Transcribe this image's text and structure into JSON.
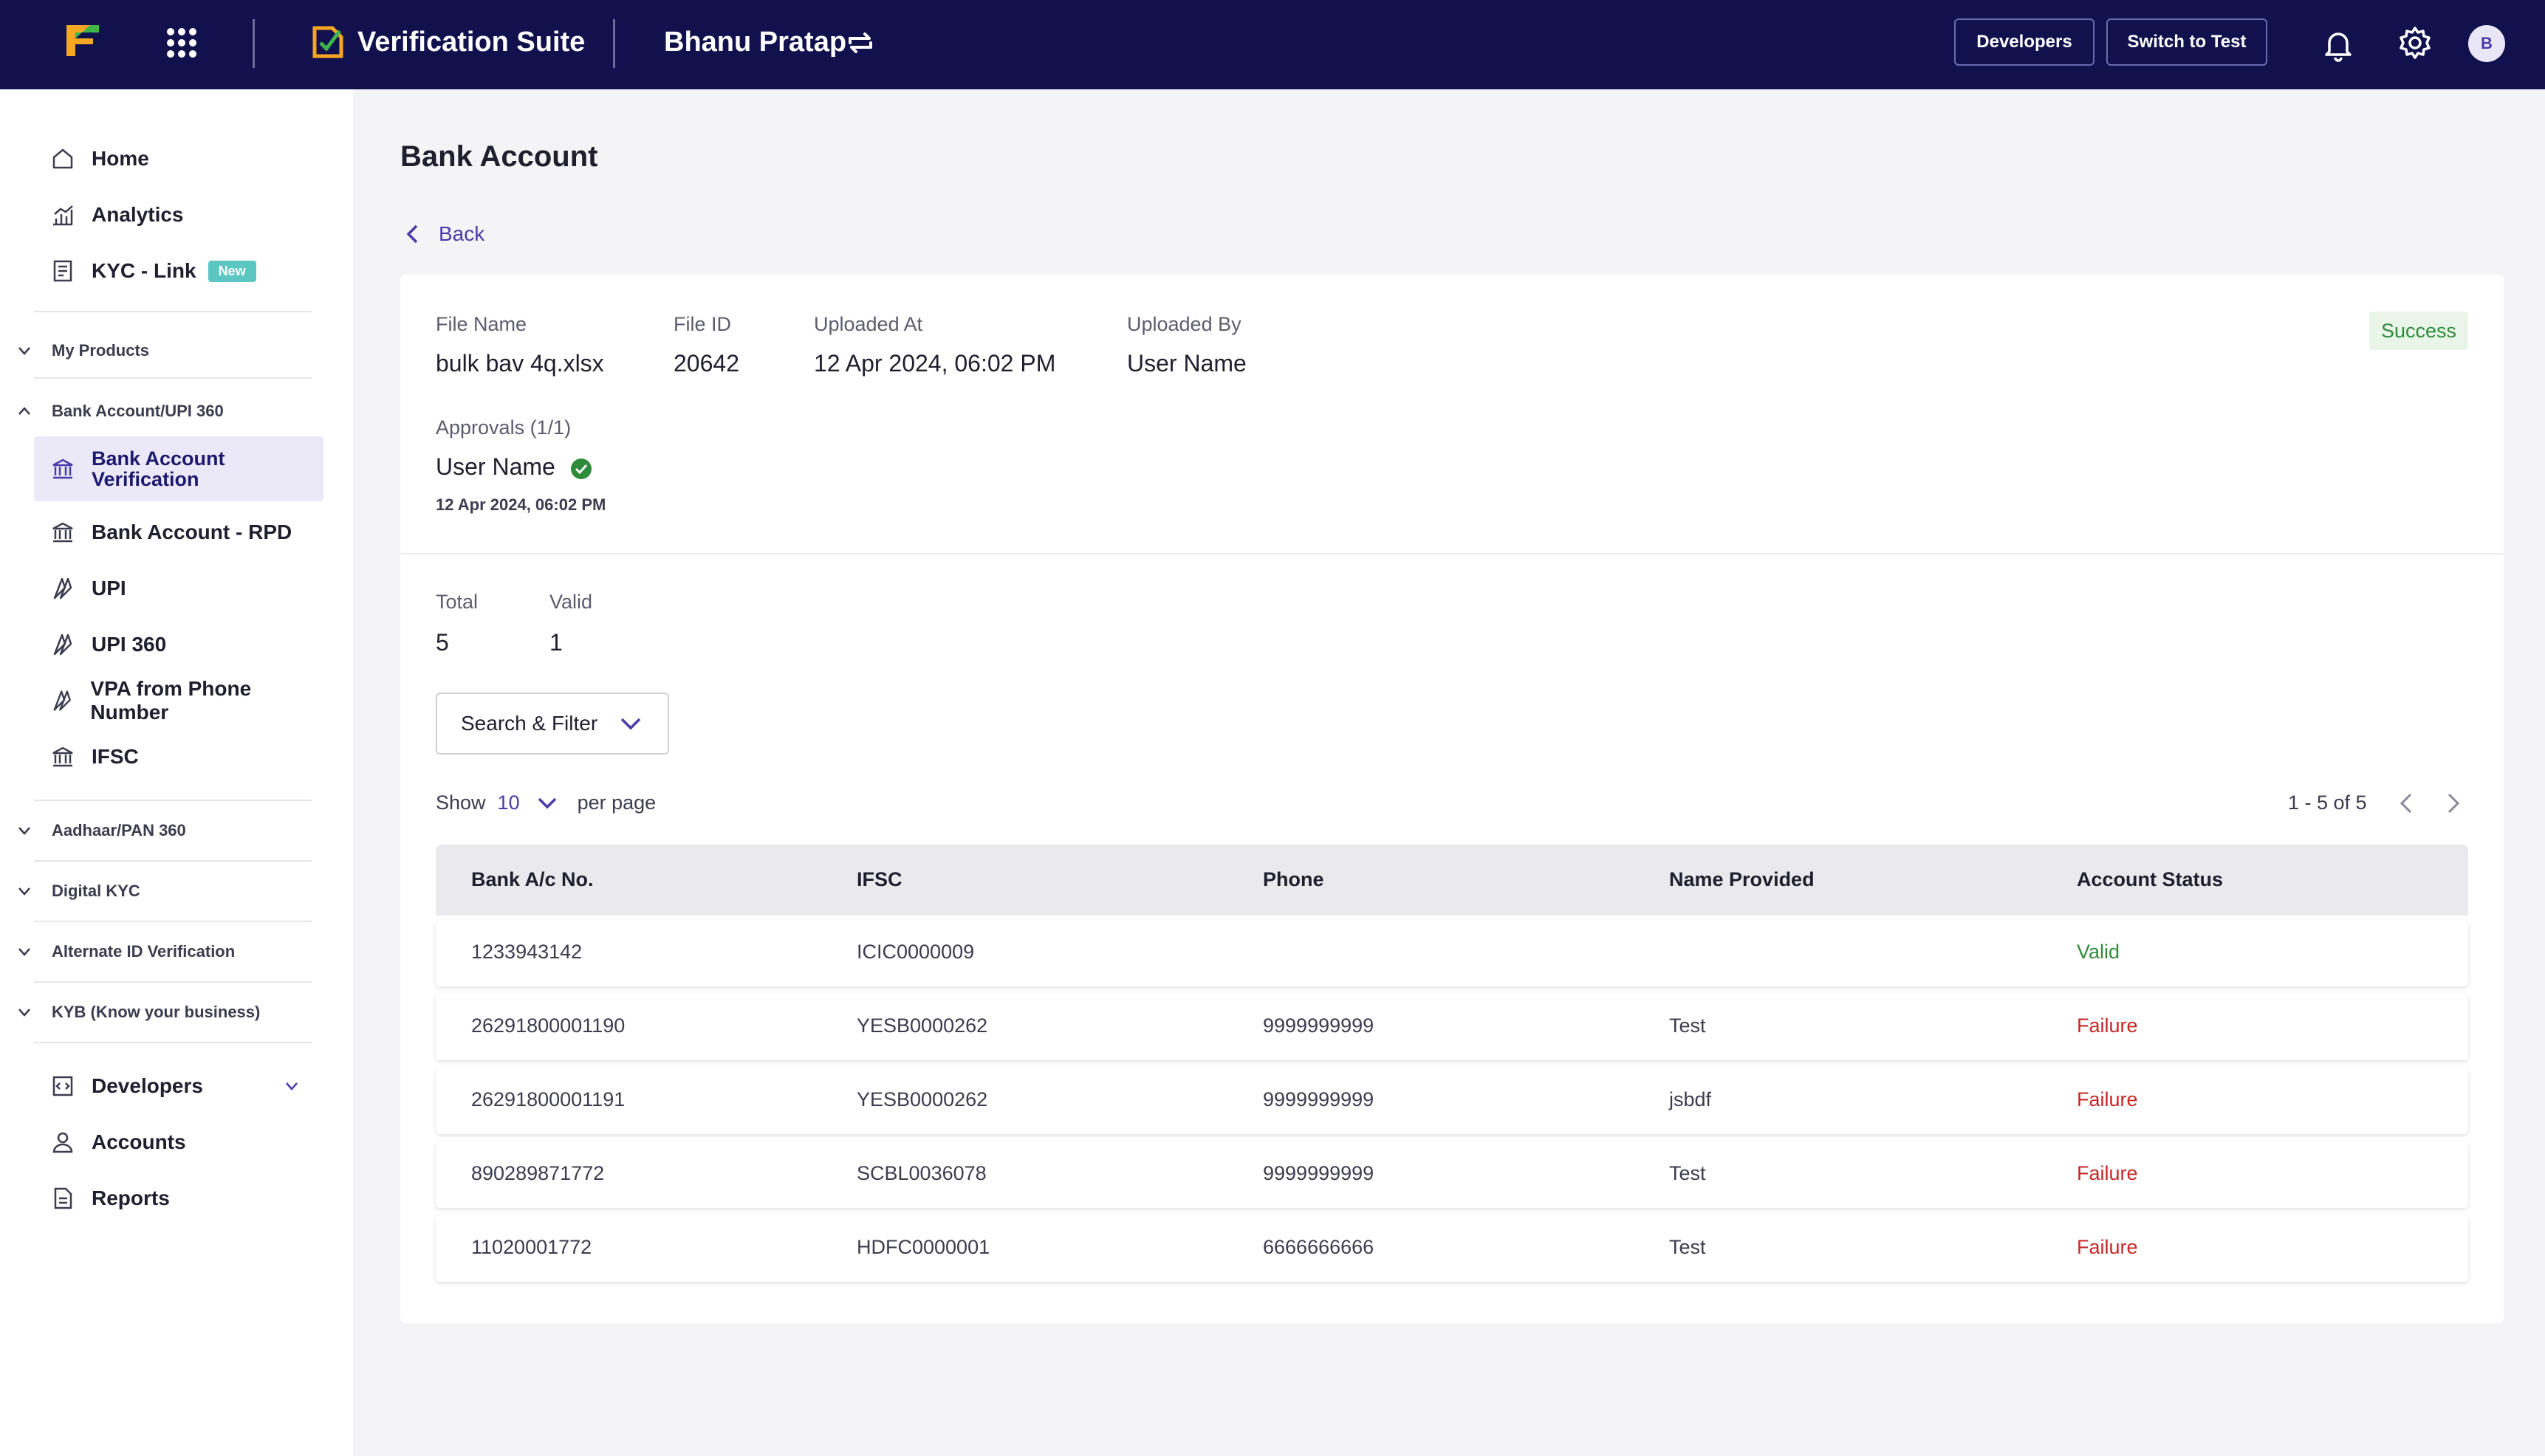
{
  "header": {
    "suite_title": "Verification Suite",
    "merchant_name": "Bhanu Pratap",
    "developers_label": "Developers",
    "switch_label": "Switch to Test",
    "avatar_initial": "B"
  },
  "sidebar": {
    "top_items": [
      {
        "label": "Home",
        "icon": "home-icon"
      },
      {
        "label": "Analytics",
        "icon": "analytics-icon"
      },
      {
        "label": "KYC - Link",
        "icon": "kyc-link-icon",
        "badge": "New"
      }
    ],
    "sections": {
      "my_products": "My Products",
      "bank_upi": "Bank Account/UPI 360",
      "aadhaar_pan": "Aadhaar/PAN 360",
      "digital_kyc": "Digital KYC",
      "alternate_id": "Alternate ID Verification",
      "kyb": "KYB (Know your business)"
    },
    "bank_items": [
      {
        "label": "Bank Account Verification",
        "icon": "bank-icon",
        "active": true
      },
      {
        "label": "Bank Account - RPD",
        "icon": "bank-icon"
      },
      {
        "label": "UPI",
        "icon": "upi-icon"
      },
      {
        "label": "UPI 360",
        "icon": "upi-icon"
      },
      {
        "label": "VPA from Phone Number",
        "icon": "upi-icon"
      },
      {
        "label": "IFSC",
        "icon": "bank-icon"
      }
    ],
    "bottom_items": [
      {
        "label": "Developers",
        "icon": "developers-icon"
      },
      {
        "label": "Accounts",
        "icon": "user-icon"
      },
      {
        "label": "Reports",
        "icon": "reports-icon"
      }
    ]
  },
  "main": {
    "title": "Bank Account",
    "back_label": "Back",
    "meta": {
      "file_name_label": "File Name",
      "file_name": "bulk bav 4q.xlsx",
      "file_id_label": "File ID",
      "file_id": "20642",
      "uploaded_at_label": "Uploaded At",
      "uploaded_at": "12 Apr 2024, 06:02 PM",
      "uploaded_by_label": "Uploaded By",
      "uploaded_by": "User Name",
      "status": "Success",
      "approvals_label": "Approvals (1/1)",
      "approver": "User Name",
      "approval_date": "12 Apr 2024, 06:02 PM"
    },
    "totals": {
      "total_label": "Total",
      "total": "5",
      "valid_label": "Valid",
      "valid": "1"
    },
    "filter_label": "Search & Filter",
    "show_label": "Show",
    "per_page": "10",
    "per_page_label": "per page",
    "pagination": "1 - 5 of 5",
    "columns": [
      "Bank A/c No.",
      "IFSC",
      "Phone",
      "Name Provided",
      "Account Status"
    ],
    "rows": [
      {
        "account": "1233943142",
        "ifsc": "ICIC0000009",
        "phone": "",
        "name": "",
        "status": "Valid"
      },
      {
        "account": "26291800001190",
        "ifsc": "YESB0000262",
        "phone": "9999999999",
        "name": "Test",
        "status": "Failure"
      },
      {
        "account": "26291800001191",
        "ifsc": "YESB0000262",
        "phone": "9999999999",
        "name": "jsbdf",
        "status": "Failure"
      },
      {
        "account": "890289871772",
        "ifsc": "SCBL0036078",
        "phone": "9999999999",
        "name": "Test",
        "status": "Failure"
      },
      {
        "account": "11020001772",
        "ifsc": "HDFC0000001",
        "phone": "6666666666",
        "name": "Test",
        "status": "Failure"
      }
    ]
  },
  "colors": {
    "topbar": "#11114e",
    "accent": "#4a3aa8",
    "success": "#2e8b3a",
    "failure": "#c62828"
  }
}
